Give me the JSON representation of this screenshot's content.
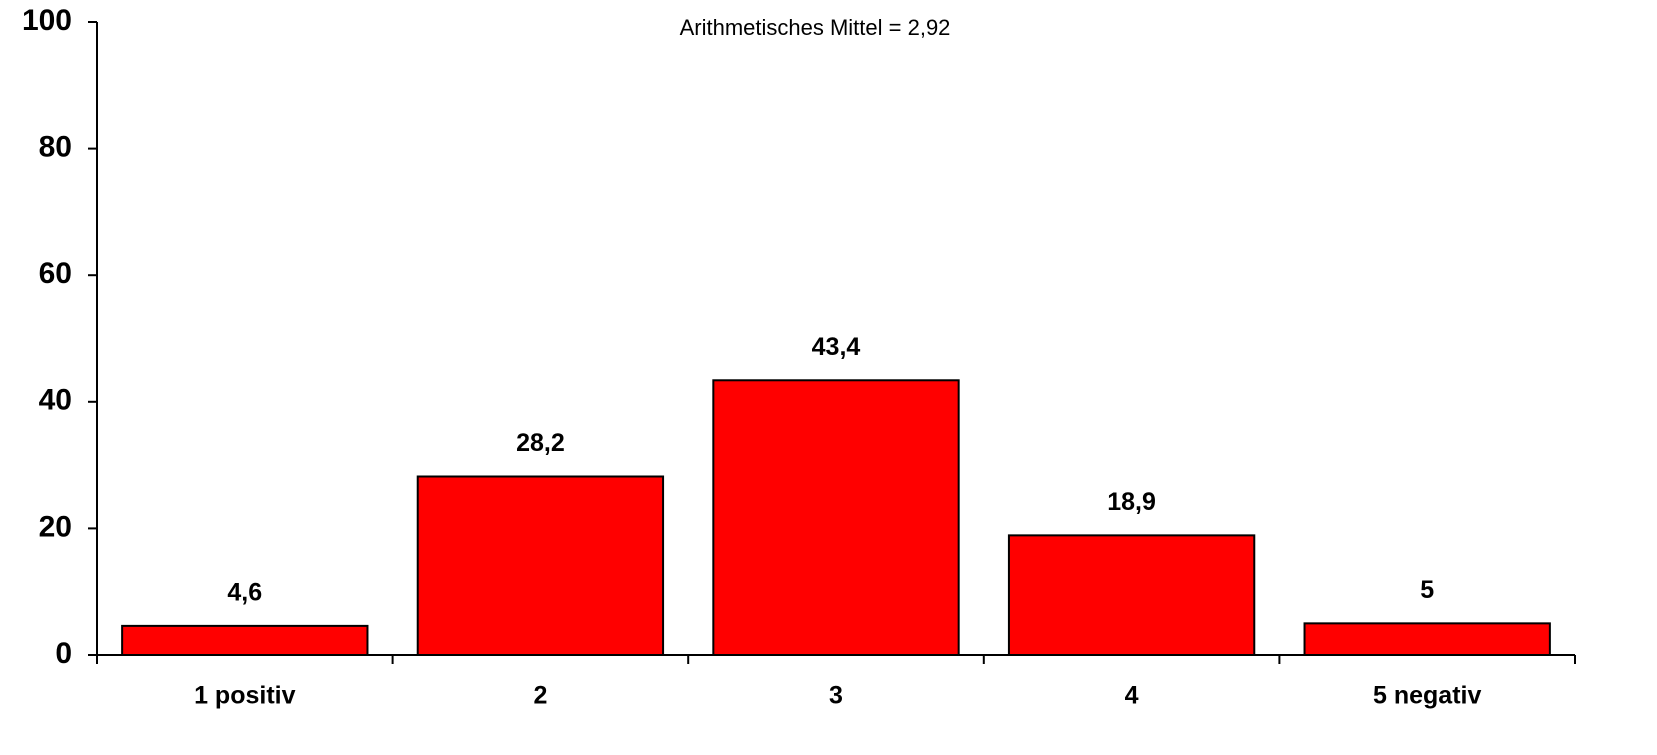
{
  "chart_data": {
    "type": "bar",
    "title": "Arithmetisches Mittel = 2,92",
    "categories": [
      "1 positiv",
      "2",
      "3",
      "4",
      "5 negativ"
    ],
    "values": [
      4.6,
      28.2,
      43.4,
      18.9,
      5
    ],
    "value_labels": [
      "4,6",
      "28,2",
      "43,4",
      "18,9",
      "5"
    ],
    "color": "#ff0000",
    "ylim": [
      0,
      100
    ],
    "yticks": [
      0,
      20,
      40,
      60,
      80,
      100
    ],
    "grid": false
  }
}
